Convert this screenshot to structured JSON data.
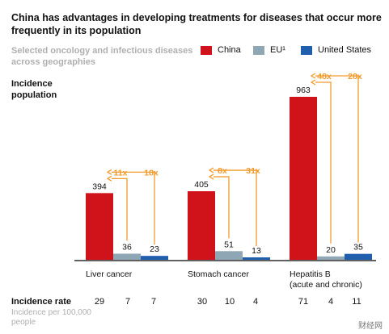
{
  "title": "China has advantages in developing treatments for diseases that occur more frequently in its population",
  "subtitle": "Selected oncology and infectious diseases across geographies",
  "y_label": "Incidence population",
  "rate_label": "Incidence rate",
  "rate_sublabel": "Incidence per 100,000 people",
  "watermark": "财经网",
  "colors": {
    "China": "#d0121b",
    "EU": "#8fa6b4",
    "United States": "#1f5fae",
    "multiplier": "#f39a2c"
  },
  "chart_data": {
    "type": "bar",
    "categories": [
      "Liver cancer",
      "Stomach cancer",
      "Hepatitis B\n(acute and chronic)"
    ],
    "series": [
      {
        "name": "China",
        "legend_label": "China",
        "values": [
          394,
          405,
          963
        ]
      },
      {
        "name": "EU",
        "legend_label": "EU¹",
        "values": [
          36,
          51,
          20
        ]
      },
      {
        "name": "United States",
        "legend_label": "United States",
        "values": [
          23,
          13,
          35
        ]
      }
    ],
    "multipliers": [
      {
        "vs_EU": "11x",
        "vs_US": "18x"
      },
      {
        "vs_EU": "8x",
        "vs_US": "31x"
      },
      {
        "vs_EU": "48x",
        "vs_US": "28x"
      }
    ],
    "incidence_rate": [
      {
        "China": "29",
        "EU": "7",
        "United States": "7"
      },
      {
        "China": "30",
        "EU": "10",
        "United States": "4"
      },
      {
        "China": "71",
        "EU": "4",
        "United States": "11"
      }
    ],
    "ylim": [
      0,
      1000
    ]
  }
}
